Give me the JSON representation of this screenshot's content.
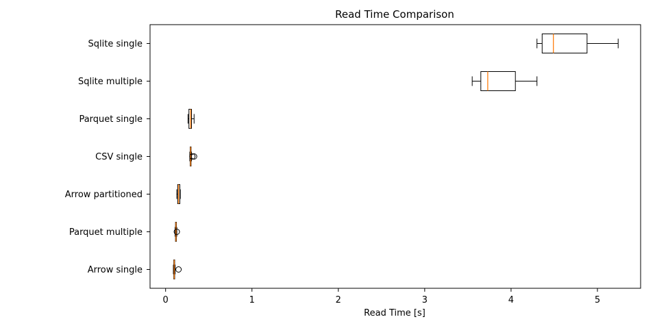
{
  "chart_data": {
    "type": "boxplot",
    "orientation": "horizontal",
    "title": "Read Time Comparison",
    "xlabel": "Read Time [s]",
    "ylabel": "",
    "xlim": [
      -0.18,
      5.5
    ],
    "xticks": [
      0,
      1,
      2,
      3,
      4,
      5
    ],
    "grid": false,
    "colors": {
      "box": "#000000",
      "median": "#ff7f0e"
    },
    "categories": [
      "Arrow single",
      "Parquet multiple",
      "Arrow partitioned",
      "CSV single",
      "Parquet single",
      "Sqlite multiple",
      "Sqlite single"
    ],
    "boxes": [
      {
        "label": "Arrow single",
        "whislo": 0.09,
        "q1": 0.095,
        "med": 0.1,
        "q3": 0.105,
        "whishi": 0.11,
        "fliers": [
          0.15
        ]
      },
      {
        "label": "Parquet multiple",
        "whislo": 0.11,
        "q1": 0.115,
        "med": 0.12,
        "q3": 0.125,
        "whishi": 0.13,
        "fliers": [
          0.13
        ]
      },
      {
        "label": "Arrow partitioned",
        "whislo": 0.13,
        "q1": 0.14,
        "med": 0.15,
        "q3": 0.165,
        "whishi": 0.17,
        "fliers": []
      },
      {
        "label": "CSV single",
        "whislo": 0.28,
        "q1": 0.285,
        "med": 0.29,
        "q3": 0.295,
        "whishi": 0.3,
        "fliers": [
          0.31,
          0.33
        ]
      },
      {
        "label": "Parquet single",
        "whislo": 0.26,
        "q1": 0.27,
        "med": 0.29,
        "q3": 0.3,
        "whishi": 0.33,
        "fliers": []
      },
      {
        "label": "Sqlite multiple",
        "whislo": 3.55,
        "q1": 3.65,
        "med": 3.73,
        "q3": 4.05,
        "whishi": 4.3,
        "fliers": []
      },
      {
        "label": "Sqlite single",
        "whislo": 4.3,
        "q1": 4.36,
        "med": 4.49,
        "q3": 4.88,
        "whishi": 5.24,
        "fliers": []
      }
    ]
  }
}
